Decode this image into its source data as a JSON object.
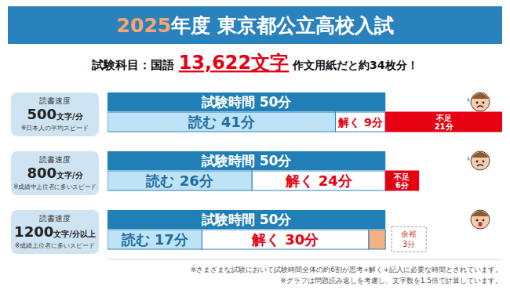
{
  "chart_data": {
    "type": "bar",
    "orientation": "horizontal",
    "stacked": true,
    "data_labels": true,
    "tick_labels": false,
    "grid": false,
    "title": "2025年度 東京都公立高校入試",
    "subtitle": {
      "prefix": "試験科目：国語",
      "highlight": "13,622文字",
      "suffix": "作文用紙だと約34枚分！"
    },
    "category_header": "読書速度",
    "categories": [
      "500文字/分",
      "800文字/分",
      "1200文字/分以上"
    ],
    "category_notes": [
      "※日本人の平均スピード",
      "※成績中上位者に多いスピード",
      "※成績上位者に多いスピード"
    ],
    "total": {
      "name": "試験時間",
      "values": [
        50,
        50,
        50
      ],
      "value_labels": [
        "50分",
        "50分",
        "50分"
      ],
      "color": "#1f7fb6"
    },
    "series": [
      {
        "name": "読む",
        "values": [
          41,
          26,
          17
        ],
        "value_labels": [
          "41分",
          "26分",
          "17分"
        ],
        "color": "#bfe3f6"
      },
      {
        "name": "解く",
        "values": [
          9,
          24,
          30
        ],
        "value_labels": [
          "9分",
          "24分",
          "30分"
        ],
        "color": "#ffffff"
      },
      {
        "name": "不足",
        "values": [
          21,
          6,
          null
        ],
        "value_labels": [
          "21分",
          "6分",
          null
        ],
        "color": "#e50012"
      },
      {
        "name": "余裕",
        "values": [
          null,
          null,
          3
        ],
        "value_labels": [
          null,
          null,
          "3分"
        ],
        "color": "#f4b183"
      }
    ],
    "xlim": [
      0,
      71
    ],
    "notes": [
      "※さまざまな試験において試験時間全体の約6割が思考+解く+記入に必要な時間とされています。",
      "※グラフは問題読み返しを考慮し、文字数を1.5倍で計算しています。"
    ]
  }
}
